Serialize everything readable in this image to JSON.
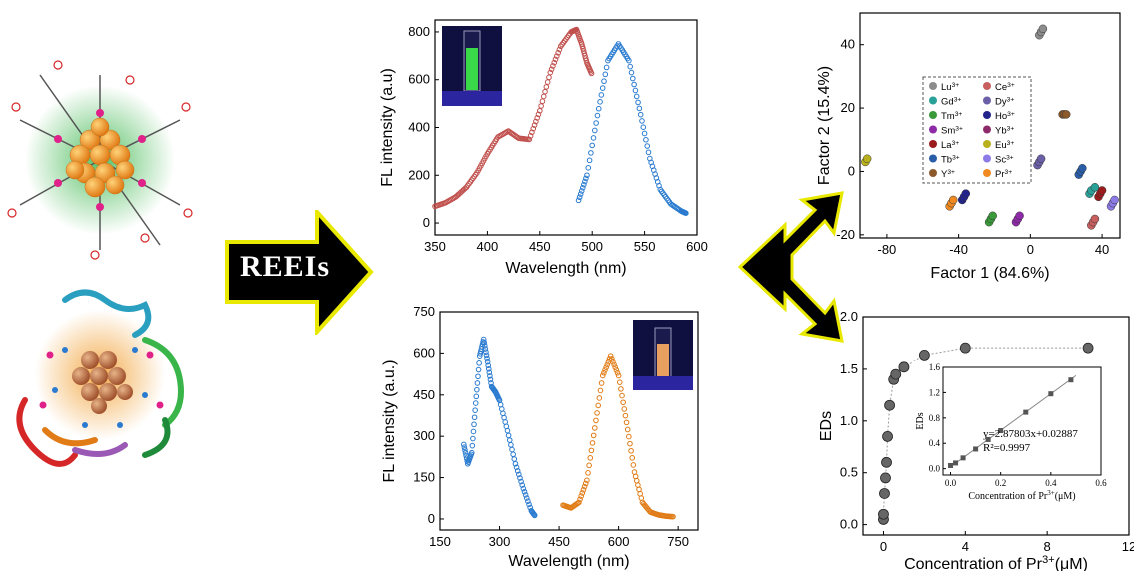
{
  "arrow_label": "REEIs",
  "colors": {
    "red": "#c0504d",
    "blue": "#2a7bd0",
    "orange": "#e07b15",
    "green": "#39b54a",
    "gold": "#f2a33a"
  },
  "chart_data": [
    {
      "type": "line",
      "xlabel": "Wavelength (nm)",
      "ylabel": "FL intensity (a.u)",
      "xlim": [
        350,
        600
      ],
      "ylim": [
        -50,
        850
      ],
      "xticks": [
        350,
        400,
        450,
        500,
        550,
        600
      ],
      "yticks": [
        0,
        200,
        400,
        600,
        800
      ],
      "series": [
        {
          "color": "#c0504d",
          "x": [
            350,
            360,
            370,
            380,
            390,
            400,
            410,
            420,
            430,
            440,
            450,
            460,
            470,
            480,
            485,
            490,
            495,
            500
          ],
          "y": [
            70,
            85,
            110,
            150,
            210,
            290,
            360,
            385,
            355,
            350,
            470,
            630,
            740,
            800,
            810,
            750,
            670,
            620
          ]
        },
        {
          "color": "#2a7bd0",
          "x": [
            487,
            495,
            505,
            515,
            525,
            535,
            545,
            555,
            565,
            575,
            585,
            590
          ],
          "y": [
            95,
            200,
            450,
            680,
            750,
            680,
            480,
            270,
            140,
            80,
            50,
            40
          ]
        }
      ]
    },
    {
      "type": "line",
      "xlabel": "Wavelength (nm)",
      "ylabel": "FL intensity (a.u.)",
      "xlim": [
        150,
        800
      ],
      "ylim": [
        -40,
        750
      ],
      "xticks": [
        150,
        300,
        450,
        600,
        750
      ],
      "yticks": [
        0,
        150,
        300,
        450,
        600,
        750
      ],
      "series": [
        {
          "color": "#2a7bd0",
          "x": [
            210,
            220,
            230,
            240,
            250,
            260,
            270,
            280,
            290,
            300,
            320,
            340,
            360,
            380,
            390
          ],
          "y": [
            270,
            200,
            240,
            420,
            590,
            650,
            570,
            480,
            460,
            430,
            320,
            200,
            110,
            30,
            10
          ]
        },
        {
          "color": "#e07b15",
          "x": [
            460,
            480,
            500,
            520,
            540,
            560,
            580,
            600,
            620,
            640,
            660,
            680,
            700,
            720,
            740
          ],
          "y": [
            50,
            40,
            60,
            140,
            330,
            520,
            590,
            520,
            350,
            170,
            60,
            25,
            15,
            10,
            8
          ]
        }
      ]
    },
    {
      "type": "scatter",
      "xlabel": "Factor 1 (84.6%)",
      "ylabel": "Factor 2 (15.4%)",
      "xlim": [
        -95,
        50
      ],
      "ylim": [
        -21,
        50
      ],
      "xticks": [
        -80,
        -40,
        0,
        40
      ],
      "yticks": [
        -20,
        0,
        20,
        40
      ],
      "legend": [
        "Lu3+",
        "Ce3+",
        "Gd3+",
        "Dy3+",
        "Tm3+",
        "Ho3+",
        "Sm3+",
        "Yb3+",
        "La3+",
        "Eu3+",
        "Tb3+",
        "Sc3+",
        "Y3+",
        "Pr3+"
      ],
      "legend_colors": [
        "#8c8c8c",
        "#c85f5f",
        "#2aa198",
        "#6b5fa8",
        "#3a9a3a",
        "#23238c",
        "#8e2aa8",
        "#8c2a6a",
        "#9b1c1c",
        "#b8b01c",
        "#2a5da8",
        "#8c7ae6",
        "#8c5a2a",
        "#f08a20"
      ],
      "groups": [
        {
          "color": "#8c8c8c",
          "x": [
            5,
            6,
            7
          ],
          "y": [
            43,
            44,
            45
          ]
        },
        {
          "color": "#c85f5f",
          "x": [
            34,
            35,
            36
          ],
          "y": [
            -17,
            -16,
            -15
          ]
        },
        {
          "color": "#2aa198",
          "x": [
            33,
            34,
            36
          ],
          "y": [
            -7,
            -6,
            -5
          ]
        },
        {
          "color": "#6b5fa8",
          "x": [
            4,
            5,
            6
          ],
          "y": [
            2,
            3,
            4
          ]
        },
        {
          "color": "#3a9a3a",
          "x": [
            -23,
            -22,
            -21
          ],
          "y": [
            -16,
            -15,
            -14
          ]
        },
        {
          "color": "#23238c",
          "x": [
            -38,
            -37,
            -36
          ],
          "y": [
            -9,
            -8,
            -7
          ]
        },
        {
          "color": "#8e2aa8",
          "x": [
            -8,
            -7,
            -6
          ],
          "y": [
            -16,
            -15,
            -14
          ]
        },
        {
          "color": "#8c2a6a",
          "x": [
            -4,
            -3,
            -2
          ],
          "y": [
            13,
            14,
            15
          ]
        },
        {
          "color": "#9b1c1c",
          "x": [
            38,
            39,
            40
          ],
          "y": [
            -8,
            -7,
            -6
          ]
        },
        {
          "color": "#b8b01c",
          "x": [
            -92,
            -91
          ],
          "y": [
            3,
            4
          ]
        },
        {
          "color": "#2a5da8",
          "x": [
            27,
            28,
            29
          ],
          "y": [
            -1,
            0,
            1
          ]
        },
        {
          "color": "#8c7ae6",
          "x": [
            45,
            46,
            47
          ],
          "y": [
            -11,
            -10,
            -9
          ]
        },
        {
          "color": "#8c5a2a",
          "x": [
            18,
            19,
            20
          ],
          "y": [
            18,
            18,
            18
          ]
        },
        {
          "color": "#f08a20",
          "x": [
            -45,
            -44,
            -43
          ],
          "y": [
            -11,
            -10,
            -9
          ]
        }
      ]
    },
    {
      "type": "scatter",
      "xlabel": "Concentration of Pr3+(μM)",
      "ylabel": "EDs",
      "xlim": [
        -1,
        12
      ],
      "ylim": [
        -0.1,
        2.0
      ],
      "xticks": [
        0,
        4,
        8,
        12
      ],
      "yticks": [
        0.0,
        0.5,
        1.0,
        1.5,
        2.0
      ],
      "x": [
        0,
        0,
        0.05,
        0.1,
        0.15,
        0.2,
        0.3,
        0.5,
        0.6,
        1.0,
        2.0,
        4.0,
        10.0
      ],
      "y": [
        0.05,
        0.1,
        0.3,
        0.45,
        0.6,
        0.85,
        1.15,
        1.4,
        1.45,
        1.52,
        1.63,
        1.7,
        1.7
      ],
      "inset": {
        "xlabel": "Concentration of Pr3+(μM)",
        "ylabel": "EDs",
        "xlim": [
          -0.03,
          0.6
        ],
        "ylim": [
          -0.1,
          1.6
        ],
        "xticks": [
          0.0,
          0.2,
          0.4,
          0.6
        ],
        "yticks": [
          0.0,
          0.4,
          0.8,
          1.2,
          1.6
        ],
        "equation": "y=2.87803x+0.02887",
        "r2": "R²=0.9997",
        "x": [
          0.0,
          0.02,
          0.05,
          0.1,
          0.15,
          0.2,
          0.3,
          0.4,
          0.48
        ],
        "y": [
          0.05,
          0.09,
          0.17,
          0.31,
          0.46,
          0.6,
          0.89,
          1.18,
          1.4
        ],
        "fit": [
          0.0,
          0.5
        ]
      }
    }
  ]
}
